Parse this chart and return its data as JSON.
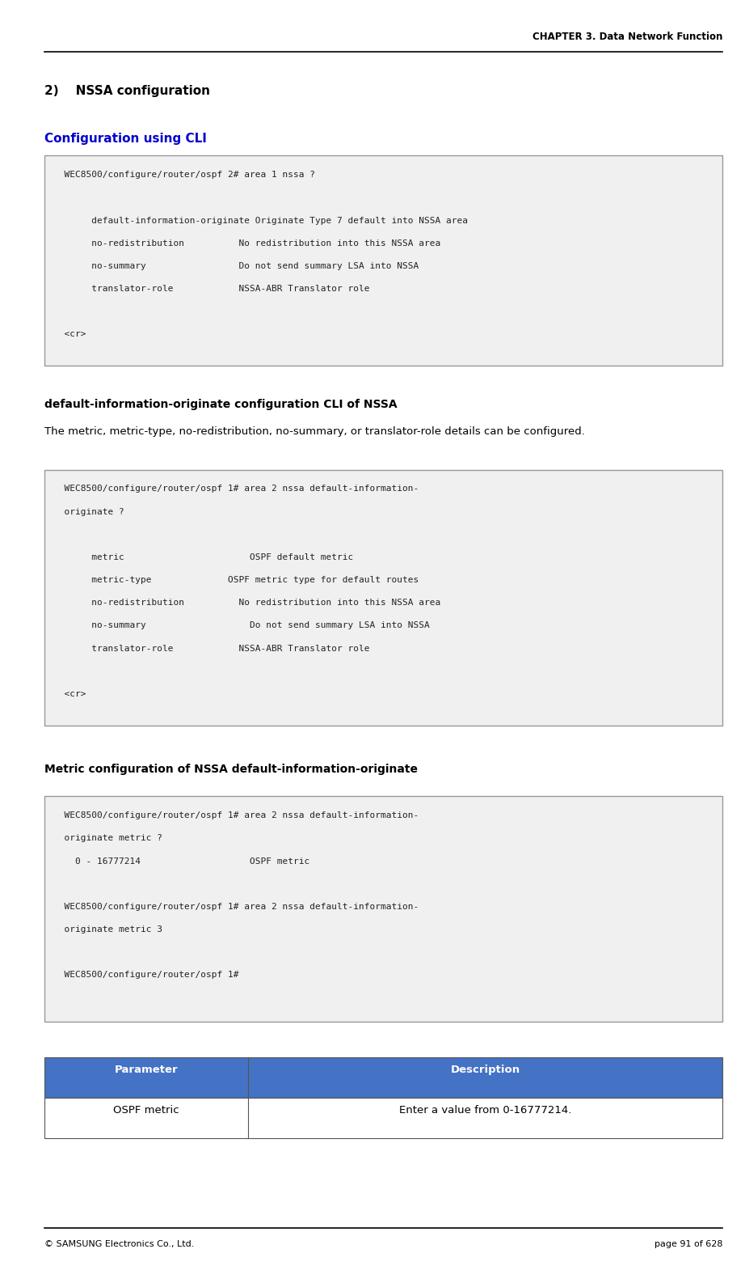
{
  "page_width": 9.22,
  "page_height": 15.65,
  "bg_color": "#ffffff",
  "header_text": "CHAPTER 3. Data Network Function",
  "footer_left": "© SAMSUNG Electronics Co., Ltd.",
  "footer_right": "page 91 of 628",
  "section_title": "2)    NSSA configuration",
  "subsection1_title": "Configuration using CLI",
  "subsection1_color": "#0000cc",
  "cli_box1_lines": [
    "  WEC8500/configure/router/ospf 2# area 1 nssa ?",
    "",
    "       default-information-originate Originate Type 7 default into NSSA area",
    "       no-redistribution          No redistribution into this NSSA area",
    "       no-summary                 Do not send summary LSA into NSSA",
    "       translator-role            NSSA-ABR Translator role",
    "",
    "  <cr>"
  ],
  "para1_bold": "default-information-originate configuration CLI of NSSA",
  "para1_normal": "The metric, metric-type, no-redistribution, no-summary, or translator-role details can be configured.",
  "cli_box2_lines": [
    "  WEC8500/configure/router/ospf 1# area 2 nssa default-information-",
    "  originate ?",
    "",
    "       metric                       OSPF default metric",
    "       metric-type              OSPF metric type for default routes",
    "       no-redistribution          No redistribution into this NSSA area",
    "       no-summary                   Do not send summary LSA into NSSA",
    "       translator-role            NSSA-ABR Translator role",
    "",
    "  <cr>"
  ],
  "subsection2_title": "Metric configuration of NSSA default-information-originate",
  "cli_box3_lines": [
    "  WEC8500/configure/router/ospf 1# area 2 nssa default-information-",
    "  originate metric ?",
    "    0 - 16777214                    OSPF metric",
    "",
    "  WEC8500/configure/router/ospf 1# area 2 nssa default-information-",
    "  originate metric 3",
    "",
    "  WEC8500/configure/router/ospf 1#"
  ],
  "table_header": [
    "Parameter",
    "Description"
  ],
  "table_header_bg": "#4472c4",
  "table_header_color": "#ffffff",
  "table_row": [
    "OSPF metric",
    "Enter a value from 0-16777214."
  ],
  "table_row_bg": "#ffffff",
  "mono_font": "DejaVu Sans Mono",
  "normal_font": "DejaVu Sans"
}
